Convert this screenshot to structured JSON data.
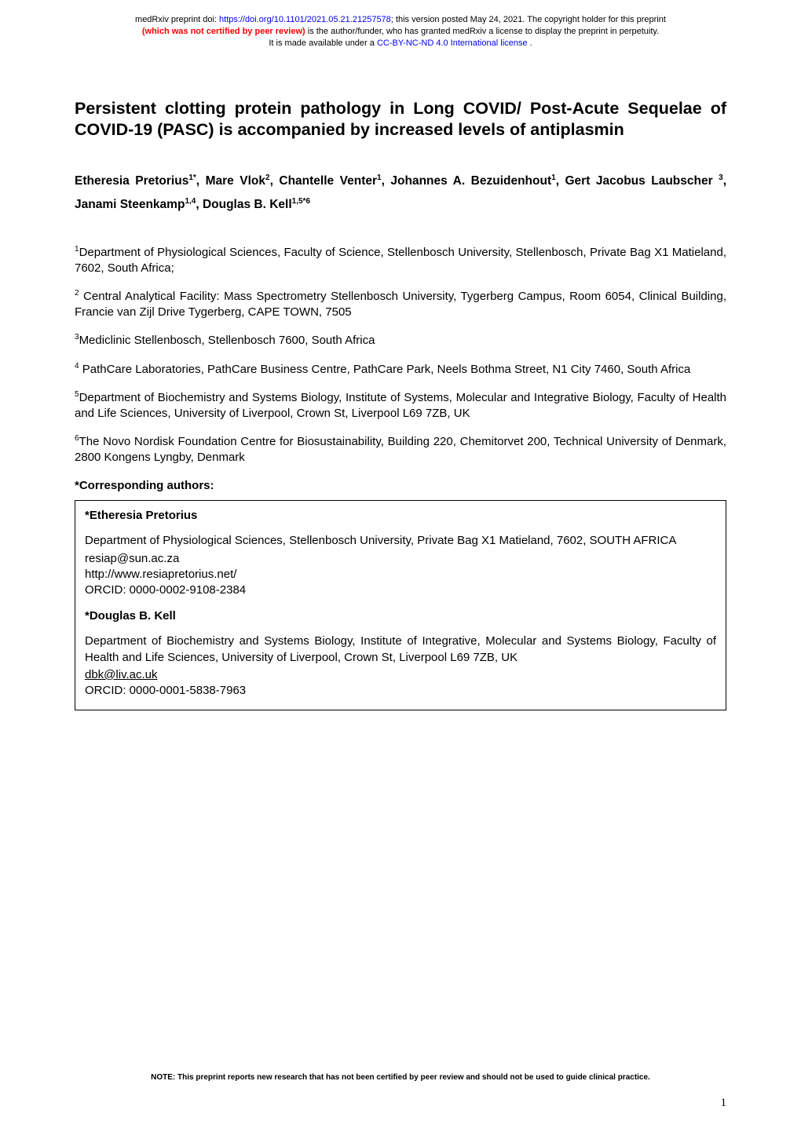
{
  "preprint_header": {
    "line1_prefix": "medRxiv preprint doi: ",
    "doi_url": "https://doi.org/10.1101/2021.05.21.21257578",
    "line1_suffix": "; this version posted May 24, 2021. The copyright holder for this preprint",
    "line2_peer_review": "(which was not certified by peer review)",
    "line2_suffix": " is the author/funder, who has granted medRxiv a license to display the preprint in perpetuity.",
    "line3_prefix": "It is made available under a ",
    "license_text": "CC-BY-NC-ND 4.0 International license",
    "line3_suffix": " ."
  },
  "title": "Persistent clotting protein pathology in Long COVID/ Post-Acute Sequelae of COVID-19 (PASC) is accompanied by increased levels of antiplasmin",
  "authors": {
    "line1_pre": "Etheresia Pretorius",
    "sup1": "1*",
    "line1_mid1": ", Mare Vlok",
    "sup2": "2",
    "line1_mid2": ", Chantelle Venter",
    "sup3": "1",
    "line1_mid3": ", Johannes A. Bezuidenhout",
    "sup4": "1",
    "line1_end": ", Gert",
    "line2_pre": "Jacobus Laubscher ",
    "sup5": "3",
    "line2_mid1": ",  Janami Steenkamp",
    "sup6": "1,4",
    "line2_mid2": ", Douglas B. Kell",
    "sup7": "1,5*6"
  },
  "affiliations": {
    "aff1_sup": "1",
    "aff1_text": "Department of Physiological Sciences, Faculty of Science, Stellenbosch University, Stellenbosch, Private Bag X1 Matieland, 7602, South Africa;",
    "aff2_sup": "2",
    "aff2_text": " Central Analytical Facility: Mass Spectrometry Stellenbosch University, Tygerberg Campus, Room 6054, Clinical Building, Francie van Zijl Drive Tygerberg, CAPE TOWN, 7505",
    "aff3_sup": "3",
    "aff3_text": "Mediclinic Stellenbosch, Stellenbosch 7600, South Africa",
    "aff4_sup": "4",
    "aff4_text": " PathCare Laboratories, PathCare Business Centre, PathCare Park, Neels Bothma Street, N1 City 7460, South Africa",
    "aff5_sup": "5",
    "aff5_text": "Department of Biochemistry and Systems Biology, Institute of Systems, Molecular and Integrative Biology, Faculty of Health and Life Sciences, University of Liverpool, Crown St, Liverpool L69 7ZB, UK",
    "aff6_sup": "6",
    "aff6_text": "The Novo Nordisk Foundation Centre for Biosustainability, Building 220, Chemitorvet 200, Technical University of Denmark, 2800 Kongens Lyngby, Denmark"
  },
  "corresponding_heading": "*Corresponding authors:",
  "box": {
    "name1": "*Etheresia Pretorius",
    "addr1_line1": "Department of Physiological Sciences, Stellenbosch University, Private Bag X1 Matieland, 7602, SOUTH AFRICA",
    "addr1_line2": "resiap@sun.ac.za",
    "addr1_line3": "http://www.resiapretorius.net/",
    "addr1_line4": "ORCID: 0000-0002-9108-2384",
    "name2": "*Douglas B. Kell",
    "addr2_line1": "Department of Biochemistry and Systems Biology, Institute of Integrative, Molecular and Systems Biology, Faculty of Health and Life Sciences, University of Liverpool, Crown St, Liverpool L69 7ZB, UK",
    "addr2_line2": "dbk@liv.ac.uk",
    "addr2_line3": "ORCID: 0000-0001-5838-7963"
  },
  "footer_note": "NOTE: This preprint reports new research that has not been certified by peer review and should not be used to guide clinical practice.",
  "page_number": "1",
  "colors": {
    "background": "#ffffff",
    "text": "#000000",
    "link": "#0000ee",
    "peer_review": "#ff0000",
    "border": "#000000"
  },
  "typography": {
    "header_fontsize": 11,
    "title_fontsize": 21.5,
    "authors_fontsize": 15.5,
    "body_fontsize": 15,
    "footer_fontsize": 10,
    "pagenum_fontsize": 15
  }
}
